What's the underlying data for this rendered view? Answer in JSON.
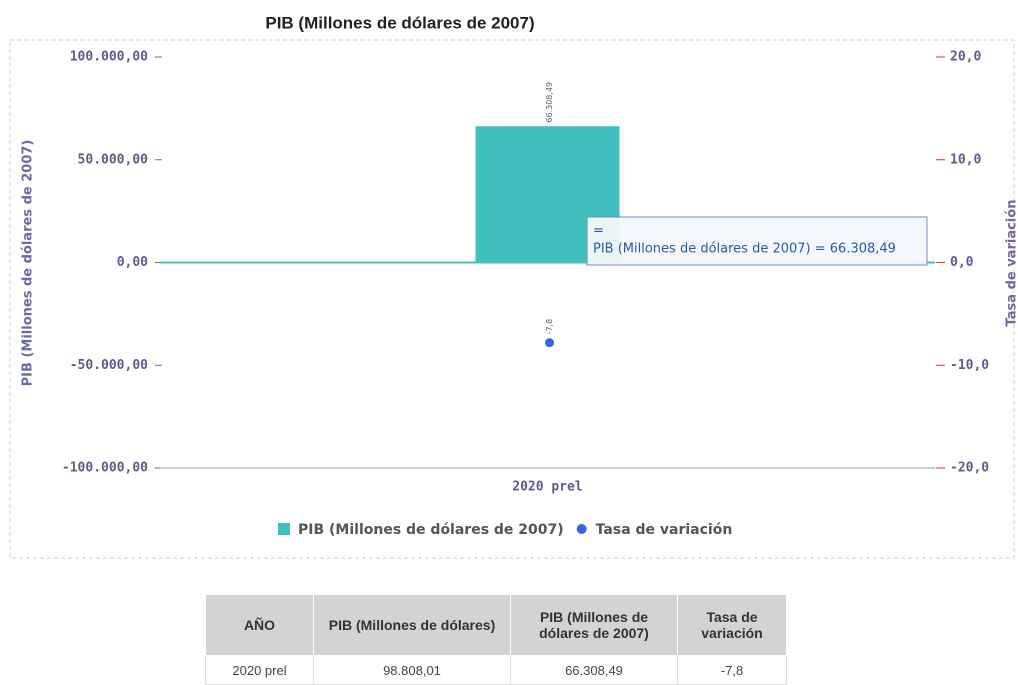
{
  "chart_data": {
    "type": "bar",
    "title": "PIB  (Millones de dólares de 2007)",
    "y_label": "PIB (Millones de dólares de 2007)",
    "y2_label": "Tasa de variación",
    "categories": [
      "2020 prel"
    ],
    "series": [
      {
        "name": "PIB (Millones de dólares de 2007)",
        "type": "bar",
        "color": "#41bfbf",
        "values": [
          66308.49
        ],
        "value_labels": [
          "66.308,49"
        ]
      },
      {
        "name": "Tasa de variación",
        "type": "scatter",
        "color": "#3a62e8",
        "axis": "y2",
        "values": [
          -7.8
        ],
        "value_labels": [
          "-7,8"
        ]
      }
    ],
    "ylim": [
      -100000,
      100000
    ],
    "yticks": [
      {
        "value": -100000,
        "label": "-100.000,00"
      },
      {
        "value": -50000,
        "label": "-50.000,00"
      },
      {
        "value": 0,
        "label": "0,00"
      },
      {
        "value": 50000,
        "label": "50.000,00"
      },
      {
        "value": 100000,
        "label": "100.000,00"
      }
    ],
    "y2lim": [
      -20,
      20
    ],
    "y2ticks": [
      {
        "value": -20,
        "label": "-20,0"
      },
      {
        "value": -10,
        "label": "-10,0"
      },
      {
        "value": 0,
        "label": "0,0"
      },
      {
        "value": 10,
        "label": "10,0"
      },
      {
        "value": 20,
        "label": "20,0"
      }
    ],
    "legend": "bottom",
    "tooltip": [
      "=",
      "PIB (Millones de dólares de 2007) = 66.308,49"
    ]
  },
  "table": {
    "header": [
      "AÑO",
      "PIB (Millones de dólares)",
      "PIB (Millones de dólares de 2007)",
      "Tasa de variación"
    ],
    "rows": [
      [
        "2020 prel",
        "98.808,01",
        "66.308,49",
        "-7,8"
      ]
    ]
  }
}
